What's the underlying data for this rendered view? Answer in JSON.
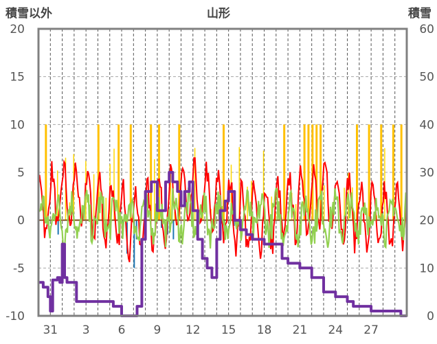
{
  "chart_data": {
    "type": "line",
    "title": "山形",
    "y_left_label": "積雪以外",
    "y_right_label": "積雪",
    "y_left_range": [
      -10,
      20
    ],
    "y_left_ticks": [
      "20",
      "15",
      "10",
      "5",
      "0",
      "-5",
      "-10"
    ],
    "y_right_range": [
      0,
      60
    ],
    "y_right_ticks": [
      "60",
      "50",
      "40",
      "30",
      "20",
      "10",
      "0"
    ],
    "x_tick_labels": [
      "31",
      "3",
      "6",
      "9",
      "12",
      "15",
      "18",
      "21",
      "24",
      "27"
    ],
    "x_range_days": [
      0,
      31
    ],
    "grid": true,
    "colors": {
      "snow_depth": "#7030a0",
      "temp_red": "#ff0000",
      "temp_green": "#92d050",
      "precip_orange": "#ffc000",
      "precip_yellow": "#ffd700",
      "negative_blue": "#1f77b4",
      "zero_line": "#7f4f1f"
    },
    "series": [
      {
        "axis": "right",
        "x": [
          0,
          0.4,
          0.8,
          1.0,
          1.2,
          1.6,
          1.8,
          2.0,
          2.2,
          2.4,
          3.0,
          3.2,
          4.0,
          5.0,
          6.0,
          6.3,
          7.0,
          7.5,
          8.0,
          8.3,
          8.7,
          9.0,
          9.5,
          10.0,
          10.3,
          10.7,
          11.0,
          11.3,
          11.7,
          12.0,
          12.3,
          12.7,
          13.0,
          13.4,
          13.8,
          14.2,
          14.6,
          15.0,
          15.3,
          15.7,
          16.0,
          16.5,
          17.0,
          17.5,
          18.0,
          19.0,
          19.5,
          20.0,
          20.5,
          21.0,
          22.0,
          23.0,
          24.0,
          25.0,
          26.0,
          26.5,
          27.0,
          28.0,
          29.0,
          30.0,
          30.5,
          31.0
        ],
        "values": [
          7.0,
          6.0,
          4.0,
          1.0,
          7.5,
          8.0,
          7.0,
          15.0,
          8.0,
          7.0,
          7.0,
          3.0,
          3.0,
          3.0,
          3.0,
          2.0,
          0.0,
          0.0,
          0.0,
          2.0,
          16.0,
          26.0,
          28.0,
          22.0,
          22.0,
          28.0,
          30.0,
          28.0,
          26.0,
          23.0,
          26.0,
          28.0,
          22.0,
          16.0,
          12.0,
          10.0,
          8.0,
          16.0,
          22.0,
          24.0,
          26.0,
          20.0,
          18.0,
          17.0,
          16.0,
          15.0,
          15.0,
          15.0,
          12.0,
          11.0,
          10.0,
          8.0,
          5.0,
          4.0,
          3.0,
          2.0,
          2.0,
          1.0,
          1.0,
          1.0,
          0.0,
          0.0
        ]
      }
    ]
  }
}
